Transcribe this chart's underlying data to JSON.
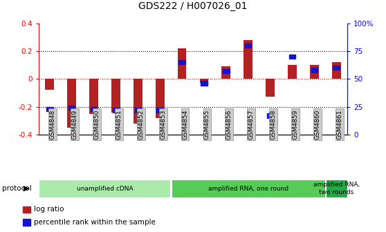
{
  "title": "GDS222 / H007026_01",
  "samples": [
    "GSM4848",
    "GSM4849",
    "GSM4850",
    "GSM4851",
    "GSM4852",
    "GSM4853",
    "GSM4854",
    "GSM4855",
    "GSM4856",
    "GSM4857",
    "GSM4858",
    "GSM4859",
    "GSM4860",
    "GSM4861"
  ],
  "log_ratio": [
    -0.08,
    -0.35,
    -0.25,
    -0.24,
    -0.32,
    -0.28,
    0.22,
    -0.03,
    0.09,
    0.28,
    -0.13,
    0.1,
    0.1,
    0.12
  ],
  "percentile": [
    23,
    24,
    23,
    22,
    22,
    22,
    65,
    46,
    57,
    80,
    17,
    70,
    58,
    60
  ],
  "bar_color": "#B22222",
  "dot_color": "#1414CC",
  "ylim_left": [
    -0.4,
    0.4
  ],
  "ylim_right": [
    0,
    100
  ],
  "yticks_left": [
    -0.4,
    -0.2,
    0.0,
    0.2,
    0.4
  ],
  "yticks_right": [
    0,
    25,
    50,
    75,
    100
  ],
  "ytick_labels_left": [
    "-0.4",
    "-0.2",
    "0",
    "0.2",
    "0.4"
  ],
  "ytick_labels_right": [
    "0",
    "25",
    "50",
    "75",
    "100%"
  ],
  "hlines_black": [
    -0.2,
    0.2
  ],
  "hline_red": 0.0,
  "protocol_groups": [
    {
      "label": "unamplified cDNA",
      "start": 0,
      "end": 6,
      "color": "#AAEAAA"
    },
    {
      "label": "amplified RNA, one round",
      "start": 6,
      "end": 13,
      "color": "#55CC55"
    },
    {
      "label": "amplified RNA,\ntwo rounds",
      "start": 13,
      "end": 14,
      "color": "#22AA44"
    }
  ],
  "legend_items": [
    {
      "color": "#B22222",
      "label": "log ratio"
    },
    {
      "color": "#1414CC",
      "label": "percentile rank within the sample"
    }
  ],
  "background_color": "#FFFFFF",
  "tick_label_bg": "#CCCCCC"
}
